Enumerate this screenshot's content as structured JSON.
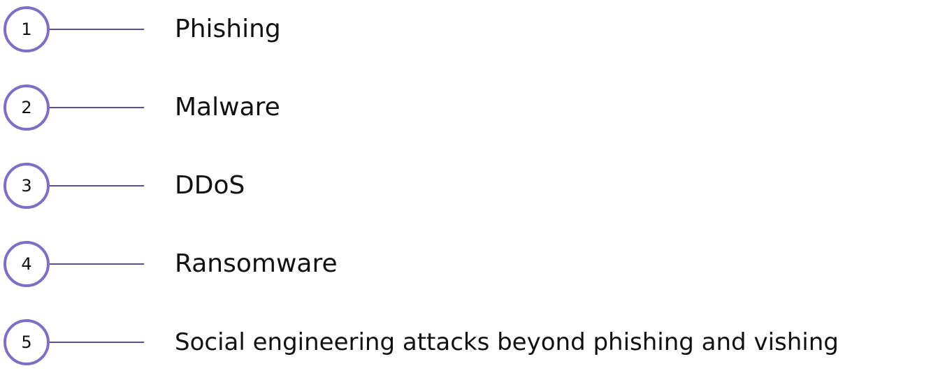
{
  "colors": {
    "circle_border": "#7d6fc9",
    "connector": "#5b4ca8",
    "text": "#111111"
  },
  "items": [
    {
      "number": "1",
      "label": "Phishing"
    },
    {
      "number": "2",
      "label": "Malware"
    },
    {
      "number": "3",
      "label": "DDoS"
    },
    {
      "number": "4",
      "label": "Ransomware"
    },
    {
      "number": "5",
      "label": "Social engineering attacks beyond phishing and vishing"
    }
  ]
}
